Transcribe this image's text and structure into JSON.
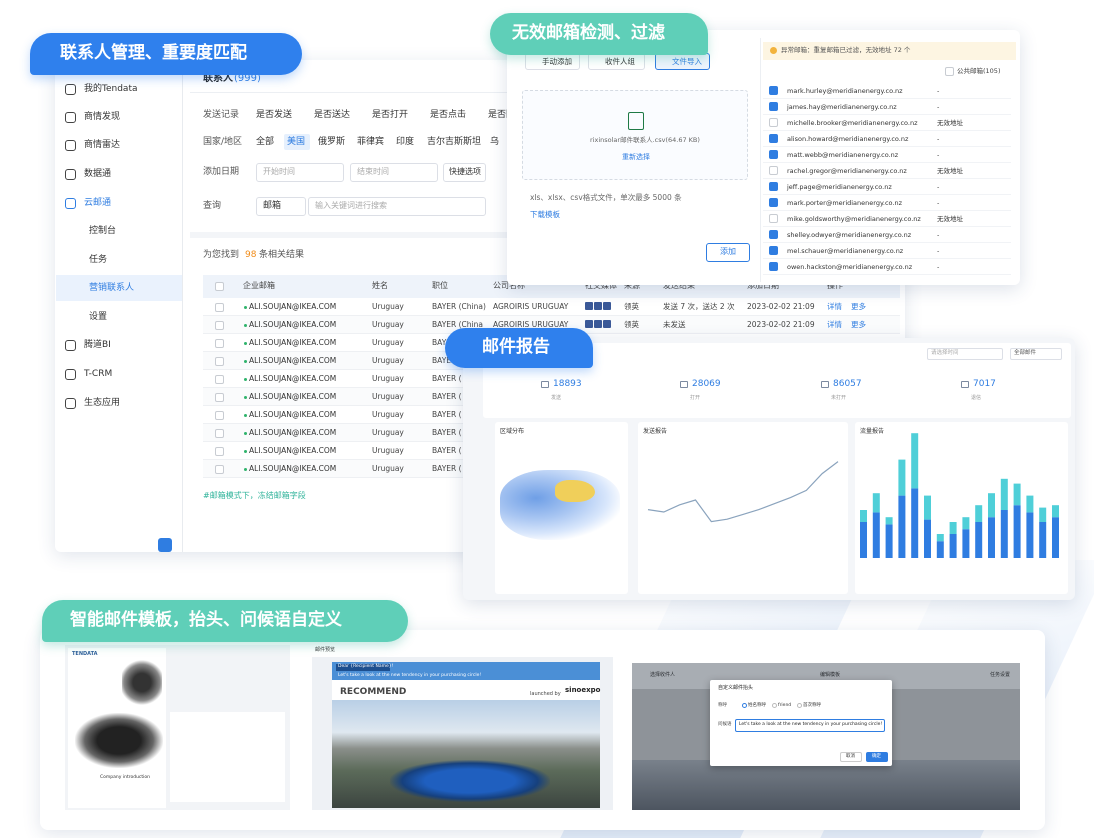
{
  "badges": {
    "contacts": "联系人管理、重要度匹配",
    "invalid": "无效邮箱检测、过滤",
    "report": "邮件报告",
    "template": "智能邮件模板，抬头、问候语自定义"
  },
  "sidebar": {
    "menu": [
      "我的Tendata",
      "商情发现",
      "商情雷达",
      "数据通",
      "云邮通"
    ],
    "submenu": [
      "控制台",
      "任务",
      "营销联系人",
      "设置"
    ],
    "menu2": [
      "腾道BI",
      "T-CRM",
      "生态应用"
    ]
  },
  "contacts": {
    "title": "联系人",
    "count": "(999)",
    "filter_labels": [
      "发送记录",
      "国家/地区",
      "添加日期",
      "查询"
    ],
    "send_options": [
      "是否发送",
      "是否送达",
      "是否打开",
      "是否点击",
      "是否回复"
    ],
    "countries": [
      "全部",
      "美国",
      "俄罗斯",
      "菲律宾",
      "印度",
      "吉尔吉斯斯坦",
      "乌"
    ],
    "date_start": "开始时间",
    "date_end": "结束时间",
    "quick": "快捷选项",
    "field": "邮箱",
    "search_placeholder": "输入关键词进行搜索",
    "result": [
      "为您找到",
      "98",
      "条相关结果"
    ],
    "columns": [
      "企业邮箱",
      "姓名",
      "职位",
      "公司名称",
      "社交媒体",
      "来源",
      "发送结果",
      "添加日期",
      "操作"
    ],
    "rows": [
      [
        "ALI.SOUJAN@IKEA.COM",
        "Uruguay",
        "BAYER (China)",
        "AGROIRIS URUGUAY",
        "领英",
        "发送 7 次，送达 2 次",
        "2023-02-02  21:09"
      ],
      [
        "ALI.SOUJAN@IKEA.COM",
        "Uruguay",
        "BAYER (China",
        "AGROIRIS URUGUAY",
        "领英",
        "未发送",
        "2023-02-02  21:09"
      ],
      [
        "ALI.SOUJAN@IKEA.COM",
        "Uruguay",
        "BAYER ("
      ],
      [
        "ALI.SOUJAN@IKEA.COM",
        "Uruguay",
        "BAYER ("
      ],
      [
        "ALI.SOUJAN@IKEA.COM",
        "Uruguay",
        "BAYER ("
      ],
      [
        "ALI.SOUJAN@IKEA.COM",
        "Uruguay",
        "BAYER ("
      ],
      [
        "ALI.SOUJAN@IKEA.COM",
        "Uruguay",
        "BAYER ("
      ],
      [
        "ALI.SOUJAN@IKEA.COM",
        "Uruguay",
        "BAYER ("
      ],
      [
        "ALI.SOUJAN@IKEA.COM",
        "Uruguay",
        "BAYER ("
      ],
      [
        "ALI.SOUJAN@IKEA.COM",
        "Uruguay",
        "BAYER ("
      ]
    ],
    "actions": [
      "详情",
      "更多"
    ],
    "footer": "#邮箱模式下，冻结邮箱字段"
  },
  "invalid": {
    "buttons": [
      "手动添加",
      "收件人组",
      "文件导入"
    ],
    "file": "rixinsolar邮件联系人.csv(64.67 KB)",
    "reselect": "重新选择",
    "hint": "xls、xlsx、csv格式文件，单次最多 5000 条",
    "download": "下载模板",
    "add": "添加",
    "notice": "异常邮箱：重复邮箱已过滤，无效地址 72 个",
    "public": "公共邮箱(105)",
    "emails": [
      {
        "email": "mark.hurley@meridianenergy.co.nz",
        "status": "-",
        "checked": true
      },
      {
        "email": "james.hay@meridianenergy.co.nz",
        "status": "-",
        "checked": true
      },
      {
        "email": "michelle.brooker@meridianenergy.co.nz",
        "status": "无效地址",
        "checked": false
      },
      {
        "email": "alison.howard@meridianenergy.co.nz",
        "status": "-",
        "checked": true
      },
      {
        "email": "matt.webb@meridianenergy.co.nz",
        "status": "-",
        "checked": true
      },
      {
        "email": "rachel.gregor@meridianenergy.co.nz",
        "status": "无效地址",
        "checked": false
      },
      {
        "email": "jeff.page@meridianenergy.co.nz",
        "status": "-",
        "checked": true
      },
      {
        "email": "mark.porter@meridianenergy.co.nz",
        "status": "-",
        "checked": true
      },
      {
        "email": "mike.goldsworthy@meridianenergy.co.nz",
        "status": "无效地址",
        "checked": false
      },
      {
        "email": "shelley.odwyer@meridianenergy.co.nz",
        "status": "-",
        "checked": true
      },
      {
        "email": "mel.schauer@meridianenergy.co.nz",
        "status": "-",
        "checked": true
      },
      {
        "email": "owen.hackston@meridianenergy.co.nz",
        "status": "-",
        "checked": true
      }
    ]
  },
  "report": {
    "date_placeholder": "请选择时间",
    "mail_filter": "全部邮件",
    "stats": [
      {
        "value": "18893",
        "label": "发送"
      },
      {
        "value": "28069",
        "label": "打开"
      },
      {
        "value": "86057",
        "label": "未打开"
      },
      {
        "value": "7017",
        "label": "退信"
      }
    ],
    "chart_titles": [
      "区域分布",
      "发送报告",
      "流量报告"
    ],
    "send_line": {
      "color": "#8aa3bd",
      "ylim": [
        0,
        100
      ],
      "values": [
        42,
        40,
        46,
        50,
        32,
        34,
        38,
        42,
        47,
        52,
        58,
        72,
        82
      ]
    },
    "traffic": {
      "ylim": [
        0,
        100
      ],
      "series": [
        {
          "color": "#2f7de1",
          "values": [
            30,
            38,
            28,
            52,
            58,
            32,
            14,
            20,
            24,
            30,
            34,
            40,
            44,
            38,
            30,
            34
          ]
        },
        {
          "color": "#4fcfd8",
          "values": [
            10,
            16,
            6,
            30,
            46,
            20,
            6,
            10,
            10,
            14,
            20,
            26,
            18,
            14,
            12,
            10
          ]
        }
      ]
    }
  },
  "template": {
    "brand": "TENDATA",
    "company_intro": "Company introduction",
    "preview": "邮件预览",
    "greeting": "Dear {Recipient Name}!",
    "tagline": "Let's take a look at the new tendency in your purchasing circle!",
    "recommend": "RECOMMEND",
    "launched": "launched by",
    "sinoexpo": "sinoexpo",
    "steps": [
      "选择收件人",
      "编辑模板",
      "任务设置"
    ],
    "dialog_title": "自定义邮件抬头",
    "salutation": "称呼",
    "options": [
      "姓名称呼",
      "friend",
      "首次称呼"
    ],
    "greeting_label": "问候语",
    "cancel": "取消",
    "confirm": "确定"
  }
}
